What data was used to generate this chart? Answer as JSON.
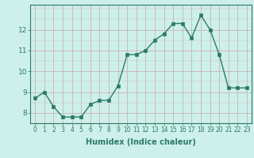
{
  "x": [
    0,
    1,
    2,
    3,
    4,
    5,
    6,
    7,
    8,
    9,
    10,
    11,
    12,
    13,
    14,
    15,
    16,
    17,
    18,
    19,
    20,
    21,
    22,
    23
  ],
  "y": [
    8.7,
    9.0,
    8.3,
    7.8,
    7.8,
    7.8,
    8.4,
    8.6,
    8.6,
    9.3,
    10.8,
    10.8,
    11.0,
    11.5,
    11.8,
    12.3,
    12.3,
    11.6,
    12.7,
    12.0,
    10.8,
    9.2,
    9.2,
    9.2
  ],
  "xlabel": "Humidex (Indice chaleur)",
  "bg_color": "#cdf0eb",
  "line_color": "#2d7a68",
  "grid_color": "#c8a8a8",
  "xlim": [
    -0.5,
    23.5
  ],
  "ylim": [
    7.5,
    13.2
  ],
  "yticks": [
    8,
    9,
    10,
    11,
    12
  ],
  "xticks": [
    0,
    1,
    2,
    3,
    4,
    5,
    6,
    7,
    8,
    9,
    10,
    11,
    12,
    13,
    14,
    15,
    16,
    17,
    18,
    19,
    20,
    21,
    22,
    23
  ],
  "tick_fontsize": 5.5,
  "ytick_fontsize": 6.5,
  "xlabel_fontsize": 7.0,
  "linewidth": 1.0,
  "markersize": 2.5
}
